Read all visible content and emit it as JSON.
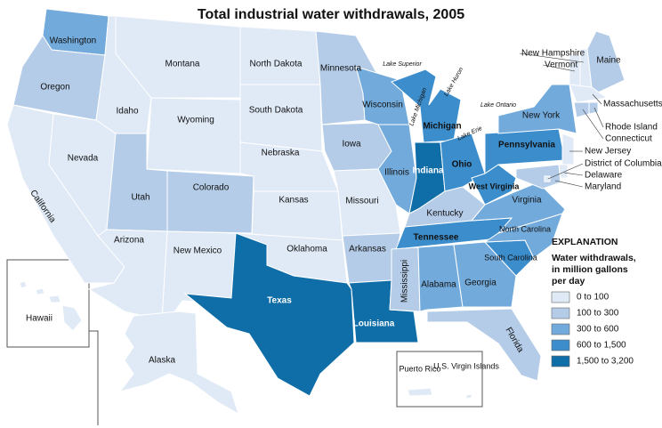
{
  "title": "Total industrial water withdrawals, 2005",
  "legend": {
    "title": "EXPLANATION",
    "lines": [
      "Water withdrawals,",
      "in million gallons",
      "per day"
    ],
    "classes": [
      {
        "label": "0 to 100",
        "color": "#e0eaf6"
      },
      {
        "label": "100 to 300",
        "color": "#b4cce7"
      },
      {
        "label": "300 to 600",
        "color": "#72aadb"
      },
      {
        "label": "600 to 1,500",
        "color": "#3b8dcc"
      },
      {
        "label": "1,500 to 3,200",
        "color": "#0f6ea8"
      }
    ]
  },
  "states": [
    {
      "name": "Washington",
      "color": "#72aadb"
    },
    {
      "name": "Oregon",
      "color": "#b4cce7"
    },
    {
      "name": "California",
      "color": "#e0eaf6"
    },
    {
      "name": "Nevada",
      "color": "#e0eaf6"
    },
    {
      "name": "Idaho",
      "color": "#e0eaf6"
    },
    {
      "name": "Montana",
      "color": "#e0eaf6"
    },
    {
      "name": "Wyoming",
      "color": "#e0eaf6"
    },
    {
      "name": "Utah",
      "color": "#b4cce7"
    },
    {
      "name": "Arizona",
      "color": "#e0eaf6"
    },
    {
      "name": "Colorado",
      "color": "#b4cce7"
    },
    {
      "name": "New Mexico",
      "color": "#e0eaf6"
    },
    {
      "name": "North Dakota",
      "color": "#e0eaf6"
    },
    {
      "name": "South Dakota",
      "color": "#e0eaf6"
    },
    {
      "name": "Nebraska",
      "color": "#e0eaf6"
    },
    {
      "name": "Kansas",
      "color": "#e0eaf6"
    },
    {
      "name": "Oklahoma",
      "color": "#e0eaf6"
    },
    {
      "name": "Texas",
      "color": "#0f6ea8"
    },
    {
      "name": "Minnesota",
      "color": "#b4cce7"
    },
    {
      "name": "Iowa",
      "color": "#b4cce7"
    },
    {
      "name": "Missouri",
      "color": "#e0eaf6"
    },
    {
      "name": "Arkansas",
      "color": "#b4cce7"
    },
    {
      "name": "Louisiana",
      "color": "#0f6ea8"
    },
    {
      "name": "Wisconsin",
      "color": "#72aadb"
    },
    {
      "name": "Illinois",
      "color": "#72aadb"
    },
    {
      "name": "Michigan",
      "color": "#3b8dcc"
    },
    {
      "name": "Indiana",
      "color": "#0f6ea8"
    },
    {
      "name": "Ohio",
      "color": "#3b8dcc"
    },
    {
      "name": "Kentucky",
      "color": "#b4cce7"
    },
    {
      "name": "Tennessee",
      "color": "#3b8dcc"
    },
    {
      "name": "Mississippi",
      "color": "#b4cce7"
    },
    {
      "name": "Alabama",
      "color": "#72aadb"
    },
    {
      "name": "Georgia",
      "color": "#72aadb"
    },
    {
      "name": "Florida",
      "color": "#b4cce7"
    },
    {
      "name": "South Carolina",
      "color": "#3b8dcc"
    },
    {
      "name": "North Carolina",
      "color": "#72aadb"
    },
    {
      "name": "Virginia",
      "color": "#72aadb"
    },
    {
      "name": "West Virginia",
      "color": "#3b8dcc"
    },
    {
      "name": "Pennsylvania",
      "color": "#3b8dcc"
    },
    {
      "name": "New York",
      "color": "#72aadb"
    },
    {
      "name": "Vermont",
      "color": "#e0eaf6"
    },
    {
      "name": "New Hampshire",
      "color": "#e0eaf6"
    },
    {
      "name": "Maine",
      "color": "#b4cce7"
    },
    {
      "name": "Massachusetts",
      "color": "#e0eaf6"
    },
    {
      "name": "Connecticut",
      "color": "#b4cce7"
    },
    {
      "name": "Rhode Island",
      "color": "#b4cce7"
    },
    {
      "name": "New Jersey",
      "color": "#e0eaf6"
    },
    {
      "name": "Delaware",
      "color": "#e0eaf6"
    },
    {
      "name": "Maryland",
      "color": "#b4cce7"
    },
    {
      "name": "District of Columbia",
      "color": "#e0eaf6"
    },
    {
      "name": "Hawaii",
      "color": "#e0eaf6"
    },
    {
      "name": "Alaska",
      "color": "#e0eaf6"
    },
    {
      "name": "Puerto Rico",
      "color": "#e0eaf6"
    },
    {
      "name": "U.S. Virgin Islands",
      "color": "#e0eaf6"
    }
  ],
  "lakes": [
    "Lake Superior",
    "Lake Michigan",
    "Lake Huron",
    "Lake Erie",
    "Lake Ontario"
  ]
}
